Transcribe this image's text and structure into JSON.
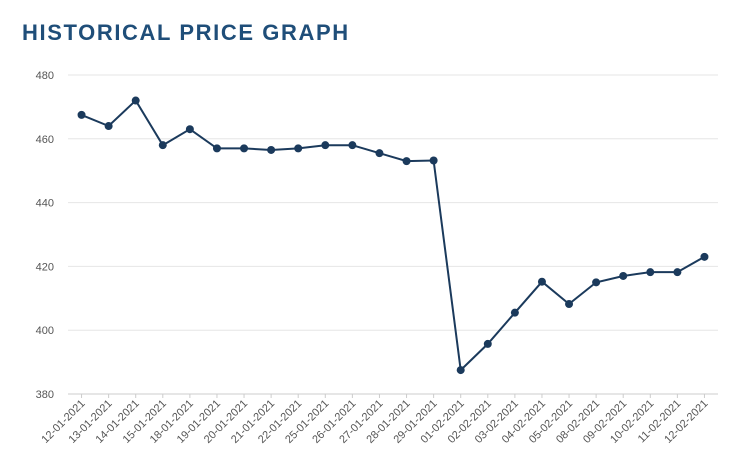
{
  "title": "HISTORICAL PRICE GRAPH",
  "chart_data": {
    "type": "line",
    "title": "HISTORICAL PRICE GRAPH",
    "xlabel": "",
    "ylabel": "",
    "ylim": [
      380,
      480
    ],
    "yticks": [
      380,
      400,
      420,
      440,
      460,
      480
    ],
    "grid": true,
    "categories": [
      "12-01-2021",
      "13-01-2021",
      "14-01-2021",
      "15-01-2021",
      "18-01-2021",
      "19-01-2021",
      "20-01-2021",
      "21-01-2021",
      "22-01-2021",
      "25-01-2021",
      "26-01-2021",
      "27-01-2021",
      "28-01-2021",
      "29-01-2021",
      "01-02-2021",
      "02-02-2021",
      "03-02-2021",
      "04-02-2021",
      "05-02-2021",
      "08-02-2021",
      "09-02-2021",
      "10-02-2021",
      "11-02-2021",
      "12-02-2021"
    ],
    "series": [
      {
        "values": [
          467.5,
          464,
          472,
          458,
          463,
          457,
          457,
          456.5,
          457,
          458,
          458,
          455.5,
          453,
          453.2,
          387.5,
          395.7,
          405.5,
          415.2,
          408.2,
          415,
          417,
          418.2,
          418.2,
          423
        ],
        "color": "#1b3a5c"
      }
    ]
  }
}
